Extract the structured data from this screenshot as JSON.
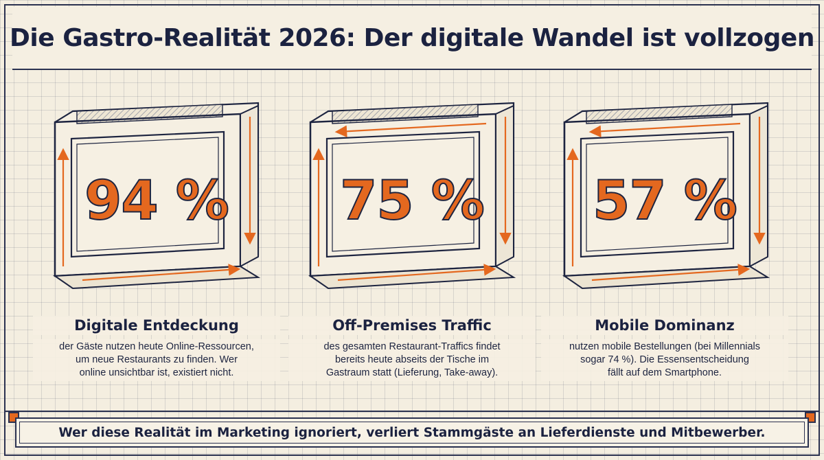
{
  "title": "Die Gastro-Realität 2026: Der digitale Wandel ist vollzogen",
  "stats": [
    {
      "value": "94 %",
      "heading": "Digitale Entdeckung",
      "lines": [
        "der Gäste nutzen heute Online-Ressourcen,",
        "um neue Restaurants zu finden. Wer",
        "online unsichtbar ist, existiert nicht."
      ]
    },
    {
      "value": "75 %",
      "heading": "Off-Premises Traffic",
      "lines": [
        "des gesamten Restaurant-Traffics findet",
        "bereits heute abseits der Tische im",
        "Gastraum statt (Lieferung, Take-away)."
      ]
    },
    {
      "value": "57 %",
      "heading": "Mobile Dominanz",
      "lines": [
        "nutzen mobile Bestellungen (bei Millennials",
        "sogar 74 %). Die Essensentscheidung",
        "fällt auf dem Smartphone."
      ]
    }
  ],
  "footer": "Wer diese Realität im Marketing ignoriert, verliert Stammgäste an Lieferdienste und Mitbewerber.",
  "colors": {
    "accent": "#e4681f",
    "ink": "#1d2440",
    "paper": "#f5efe2"
  }
}
